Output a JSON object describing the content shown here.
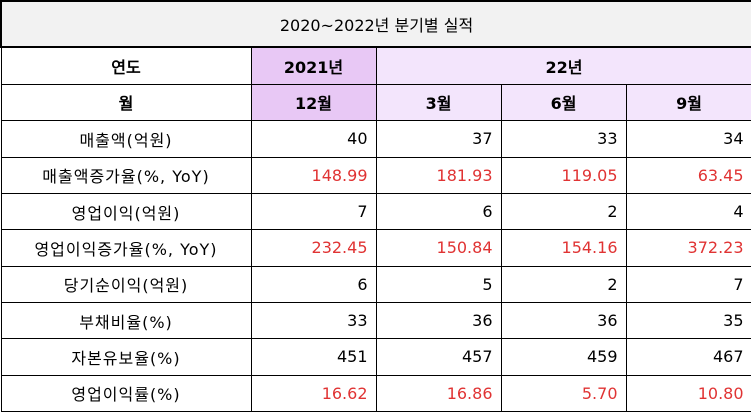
{
  "title": "2020~2022년 분기별 실적",
  "header": {
    "year_label": "연도",
    "year_2021": "2021년",
    "year_22": "22년",
    "month_label": "월",
    "months": [
      "12월",
      "3월",
      "6월",
      "9월"
    ]
  },
  "rows": [
    {
      "label": "매출액(억원)",
      "values": [
        "40",
        "37",
        "33",
        "34"
      ],
      "color": "#000000"
    },
    {
      "label": "매출액증가율(%, YoY)",
      "values": [
        "148.99",
        "181.93",
        "119.05",
        "63.45"
      ],
      "color": "#e03333"
    },
    {
      "label": "영업이익(억원)",
      "values": [
        "7",
        "6",
        "2",
        "4"
      ],
      "color": "#000000"
    },
    {
      "label": "영업이익증가율(%, YoY)",
      "values": [
        "232.45",
        "150.84",
        "154.16",
        "372.23"
      ],
      "color": "#e03333"
    },
    {
      "label": "당기순이익(억원)",
      "values": [
        "6",
        "5",
        "2",
        "7"
      ],
      "color": "#000000"
    },
    {
      "label": "부채비율(%)",
      "values": [
        "33",
        "36",
        "36",
        "35"
      ],
      "color": "#000000"
    },
    {
      "label": "자본유보율(%)",
      "values": [
        "451",
        "457",
        "459",
        "467"
      ],
      "color": "#000000"
    },
    {
      "label": "영업이익률(%)",
      "values": [
        "16.62",
        "16.86",
        "5.70",
        "10.80"
      ],
      "color": "#e03333"
    }
  ],
  "colors": {
    "highlight_2021": "#e8c8f5",
    "highlight_22": "#f3e5fc",
    "title_bg": "#f2f2f2",
    "red_text": "#e03333"
  }
}
